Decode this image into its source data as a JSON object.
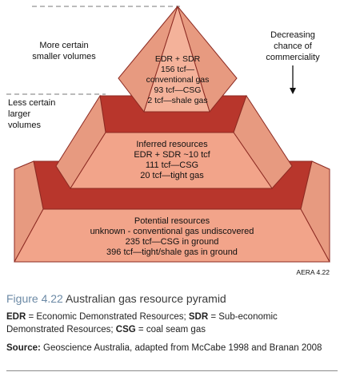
{
  "left_labels": {
    "top": [
      "More certain",
      "smaller volumes"
    ],
    "middle": [
      "Less certain",
      "larger",
      "volumes"
    ]
  },
  "right_label": [
    "Decreasing",
    "chance of",
    "commerciality"
  ],
  "tiers": [
    {
      "lines": [
        "EDR + SDR",
        "156 tcf—",
        "conventional gas",
        "93 tcf—CSG",
        "2 tcf—shale gas"
      ]
    },
    {
      "lines": [
        "Inferred resources",
        "EDR + SDR ~10 tcf",
        "111 tcf—CSG",
        "20 tcf—tight gas"
      ]
    },
    {
      "lines": [
        "Potential resources",
        "unknown - conventional gas undiscovered",
        "235 tcf—CSG in ground",
        "396 tcf—tight/shale gas in ground"
      ]
    }
  ],
  "figure_ref": "AERA 4.22",
  "caption": {
    "number": "Figure 4.22",
    "title": "Australian gas resource pyramid"
  },
  "abbreviations": {
    "edr_key": "EDR",
    "edr_text": " = Economic Demonstrated Resources; ",
    "sdr_key": "SDR",
    "sdr_text": " = Sub-economic Demonstrated Resources; ",
    "csg_key": "CSG",
    "csg_text": " = coal seam gas"
  },
  "source": {
    "key": "Source:",
    "text": " Geoscience Australia, adapted from McCabe 1998 and Branan 2008"
  },
  "colors": {
    "face_light": "#f4b29a",
    "face_front": "#f2a48a",
    "side": "#e79a80",
    "dark_band": "#b8362c",
    "stroke": "#8c2a22"
  }
}
